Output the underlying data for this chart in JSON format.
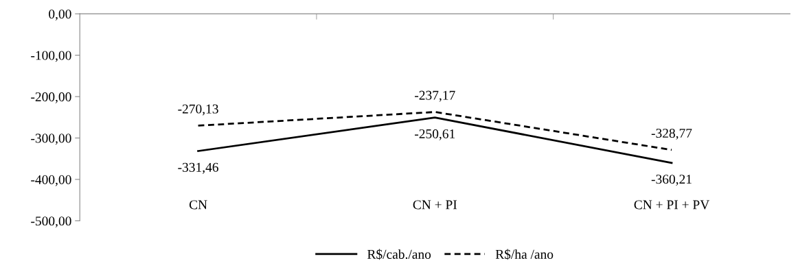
{
  "chart_data": {
    "type": "line",
    "categories": [
      "CN",
      "CN + PI",
      "CN + PI + PV"
    ],
    "series": [
      {
        "name": "R$/cab./ano",
        "color": "#000000",
        "line_style": "solid",
        "values": [
          -331.46,
          -250.61,
          -360.21
        ],
        "value_labels": [
          "-331,46",
          "-250,61",
          "-360,21"
        ]
      },
      {
        "name": "R$/ha /ano",
        "color": "#000000",
        "line_style": "dashed",
        "values": [
          -270.13,
          -237.17,
          -328.77
        ],
        "value_labels": [
          "-270,13",
          "-237,17",
          "-328,77"
        ]
      }
    ],
    "ylim": [
      -500,
      0
    ],
    "yticks": [
      {
        "value": 0,
        "label": "0,00"
      },
      {
        "value": -100,
        "label": "-100,00"
      },
      {
        "value": -200,
        "label": "-200,00"
      },
      {
        "value": -300,
        "label": "-300,00"
      },
      {
        "value": -400,
        "label": "-400,00"
      },
      {
        "value": -500,
        "label": "-500,00"
      }
    ],
    "grid": false,
    "legend": "bottom",
    "marker": "none"
  }
}
